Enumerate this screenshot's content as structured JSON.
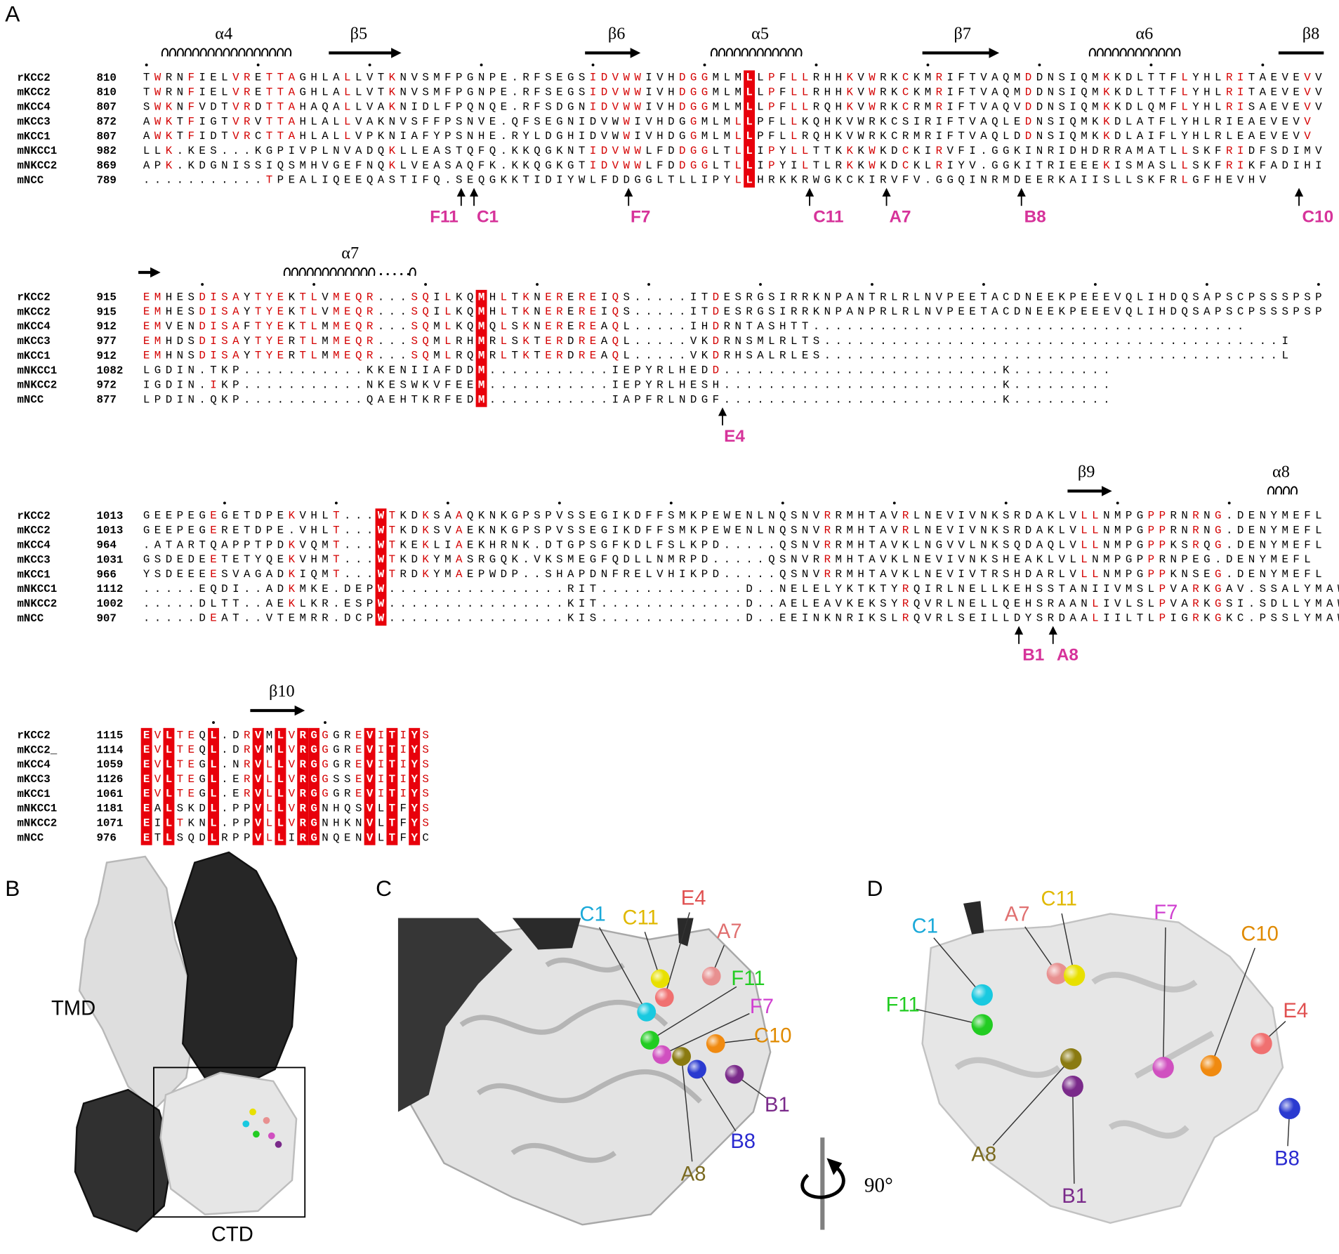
{
  "panel_a": {
    "label": "A",
    "blocks": [
      {
        "secondary_structure": [
          "α4",
          "β5",
          "β6",
          "α5",
          "β7",
          "α6",
          "β8"
        ],
        "marked_residues": [
          "F11",
          "C1",
          "F7",
          "C11",
          "A7",
          "B8",
          "C10"
        ],
        "rows": [
          {
            "name": "rKCC2",
            "start": 810,
            "sequence": "TWRNFIELVRETTAGHLALLVTKNVSMFPGNPE.RFSEGSIDVWWIVHDGGMLMLLPFLLRHHKVWRKCKMRIFTVAQMDDNSIQMKKDLTTFLYHLRITAEVEVV"
          },
          {
            "name": "mKCC2",
            "start": 810,
            "sequence": "TWRNFIELVRETTAGHLALLVTKNVSMFPGNPE.RFSEGSIDVWWIVHDGGMLMLLPFLLRHHKVWRKCKMRIFTVAQMDDNSIQMKKDLTTFLYHLRITAEVEVV"
          },
          {
            "name": "mKCC4",
            "start": 807,
            "sequence": "SWKNFVDTVRDTTAHAQALLVAKNIDLFPQNQE.RFSDGNIDVWWIVHDGGMLMLLPFLLRQHKVWRKCRMRIFTVAQVDDNSIQMKKDLQMFLYHLRISAEVEVV"
          },
          {
            "name": "mKCC3",
            "start": 872,
            "sequence": "AWKTFIGTVRVTTAHLALLVAKNVSFFPSNVE.QFSEGNIDVWWIVHDGGMLMLLPFLLKQHKVWRKCSIRIFTVAQLEDNSIQMKKDLATFLYHLRIEAEVEVV"
          },
          {
            "name": "mKCC1",
            "start": 807,
            "sequence": "AWKTFIDTVRCTTAHLALLVPKNIAFYPSNHE.RYLDGHIDVWWIVHDGGMLMLLPFLLRQHKVWRKCRMRIFTVAQLDDNSIQMKKDLAIFLYHLRLEAEVEVV"
          },
          {
            "name": "mNKCC1",
            "start": 982,
            "sequence": "LLK.KES...KGPIVPLNVADQKLLEASTQFQ.KKQGKNTIDVWWLFDDGGLTLLIPYLLTTKKKWKDCKIRVFI.GGKINRIDHDRRAMATLLSKFRIDFSDIMV"
          },
          {
            "name": "mNKCC2",
            "start": 869,
            "sequence": "APK.KDGNISSIQSMHVGEFNQKLVEASAQFK.KKQGKGTIDVWWLFDDGGLTLLIPYILTLRKKWKDCKLRIYV.GGKITRIEEEKISMASLLSKFRIKFADIHI"
          },
          {
            "name": "mNCC",
            "start": 789,
            "sequence": "...........TPEALIQEEQASTIFQ.SEQGKKTIDIYWLFDDGGLTLLIPYLLHRKKRWGKCKIRVFV.GGQINRMDEERKAIISLLSKFRLGFHEVHV"
          }
        ]
      },
      {
        "secondary_structure": [
          "α7"
        ],
        "marked_residues": [
          "E4"
        ],
        "rows": [
          {
            "name": "rKCC2",
            "start": 915,
            "sequence": "EMHESDISAYTYEKTLVMEQR...SQILKQMHLTKNEREREIQS.....ITDESRGSIRRKNPANTRLRLNVPEETACDNEEKPEEEVQLIHDQSAPSCPSSSPSP"
          },
          {
            "name": "mKCC2",
            "start": 915,
            "sequence": "EMHESDISAYTYEKTLVMEQR...SQILKQMHLTKNEREREIQS.....ITDESRGSIRRKNPANPRLRLNVPEETACDNEEKPEEEVQLIHDQSAPSCPSSSPSP"
          },
          {
            "name": "mKCC4",
            "start": 912,
            "sequence": "EMVENDISAFTYEKTLMMEQR...SQMLKQMQLSKNEREREAQL.....IHDRNTASHTT......................................."
          },
          {
            "name": "mKCC3",
            "start": 977,
            "sequence": "EMHDSDISAYTYERTLMMEQR...SQMLRHMRLSKTERDREAQL.....VKDRNSMLRLTS.........................................I"
          },
          {
            "name": "mKCC1",
            "start": 912,
            "sequence": "EMHNSDISAYTYERTLMMEQR...SQMLRQMRLTKTERDREAQL.....VKDRHSALRLES.........................................L"
          },
          {
            "name": "mNKCC1",
            "start": 1082,
            "sequence": "LGDIN.TKP...........KKENIIAFDDM...........IEPYRLHEDD.........................K........."
          },
          {
            "name": "mNKCC2",
            "start": 972,
            "sequence": "IGDIN.IKP...........NKESWKVFEEM...........IEPYRLHESH.........................K........."
          },
          {
            "name": "mNCC",
            "start": 877,
            "sequence": "LPDIN.QKP...........QAEHTKRFEDM...........IAPFRLNDGF.........................K........."
          }
        ]
      },
      {
        "secondary_structure": [
          "β9",
          "α8"
        ],
        "marked_residues": [
          "B1",
          "A8"
        ],
        "rows": [
          {
            "name": "rKCC2",
            "start": 1013,
            "sequence": "GEEPEGEGETDPEKVHLT...WTKDKSAAQKNKGPSPVSSEGIKDFFSMKPEWENLNQSNVRRMHTAVRLNEVIVNKSRDAKLVLLNMPGPPRNRNG.DENYMEFL"
          },
          {
            "name": "mKCC2",
            "start": 1013,
            "sequence": "GEEPEGERETDPE.VHLT...WTKDKSVAEKNKGPSPVSSEGIKDFFSMKPEWENLNQSNVRRMHTAVRLNEVIVNKSRDAKLVLLNMPGPPRNRNG.DENYMEFL"
          },
          {
            "name": "mKCC4",
            "start": 964,
            "sequence": ".ATARTQAPPTPDKVQMT...WTKEKLIAEKHRNK.DTGPSGFKDLFSLKPD.....QSNVRRMHTAVKLNGVVLNKSQDAQLVLLNMPGPPKSRQG.DENYMEFL"
          },
          {
            "name": "mKCC3",
            "start": 1031,
            "sequence": "GSDEDEETETYQEKVHMT...WTKDKYMASRGQK.VKSMEGFQDLLNMRPD.....QSNVRRMHTAVKLNEVIVNKSHEAKLVLLNMPGPPRNPEG.DENYMEFL"
          },
          {
            "name": "mKCC1",
            "start": 966,
            "sequence": "YSDEEEESVAGADKIQMT...WTRDKYMAEPWDP..SHAPDNFRELVHIKPD.....QSNVRRMHTAVKLNEVIVTRSHDARLVLLNMPGPPKNSEG.DENYMEFL"
          },
          {
            "name": "mNKCC1",
            "start": 1112,
            "sequence": ".....EQDI..ADKMKE.DEPW................RIT.............D..NELELYKTKTYRQIRLNELLKEHSSTANIIVMSLPVARKGAV.SSALYMAWL"
          },
          {
            "name": "mNKCC2",
            "start": 1002,
            "sequence": ".....DLTT..AEKLKR.ESPW................KIT.............D..AELEAVKEKSYRQVRLNELLQEHSRAANLIVLSLPVARKGSI.SDLLYMAWL"
          },
          {
            "name": "mNCC",
            "start": 907,
            "sequence": ".....DEAT..VTEMRR.DCPW................KIS.............D..EEINKNRIKSLRQVRLSEILLDYSRDAALIILTLPIGRKGKC.PSSLYMAWL"
          }
        ]
      },
      {
        "secondary_structure": [
          "β10"
        ],
        "rows": [
          {
            "name": "rKCC2",
            "start": 1115,
            "sequence": "EVLTEQL.DRVMLVRGGGREVITIYS"
          },
          {
            "name": "mKCC2_",
            "start": 1114,
            "sequence": "EVLTEQL.DRVMLVRGGGREVITIYS"
          },
          {
            "name": "mKCC4",
            "start": 1059,
            "sequence": "EVLTEGL.NRVLLVRGGGREVITIYS"
          },
          {
            "name": "mKCC3",
            "start": 1126,
            "sequence": "EVLTEGL.ERVLLVRGGSSEVITIYS"
          },
          {
            "name": "mKCC1",
            "start": 1061,
            "sequence": "EVLTEGL.ERVLLVRGGGREVITIYS"
          },
          {
            "name": "mNKCC1",
            "start": 1181,
            "sequence": "EALSKDL.PPVLLVRGNHQSVLTFYS"
          },
          {
            "name": "mNKCC2",
            "start": 1071,
            "sequence": "EILTKNL.PPVLLVRGNHKNVLTFYS"
          },
          {
            "name": "mNCC",
            "start": 976,
            "sequence": "ETLSQDLRPPVLLIRGNQENVLTFYC"
          }
        ]
      }
    ]
  },
  "panel_b": {
    "label": "B",
    "regions": [
      "TMD",
      "CTD"
    ]
  },
  "panel_c": {
    "label": "C",
    "residues": [
      "C1",
      "C11",
      "E4",
      "A7",
      "F11",
      "F7",
      "C10",
      "B1",
      "B8",
      "A8"
    ]
  },
  "panel_d": {
    "label": "D",
    "rotation": "90°",
    "residues": [
      "C1",
      "A7",
      "C11",
      "F7",
      "C10",
      "F11",
      "E4",
      "A8",
      "B1",
      "B8"
    ]
  }
}
